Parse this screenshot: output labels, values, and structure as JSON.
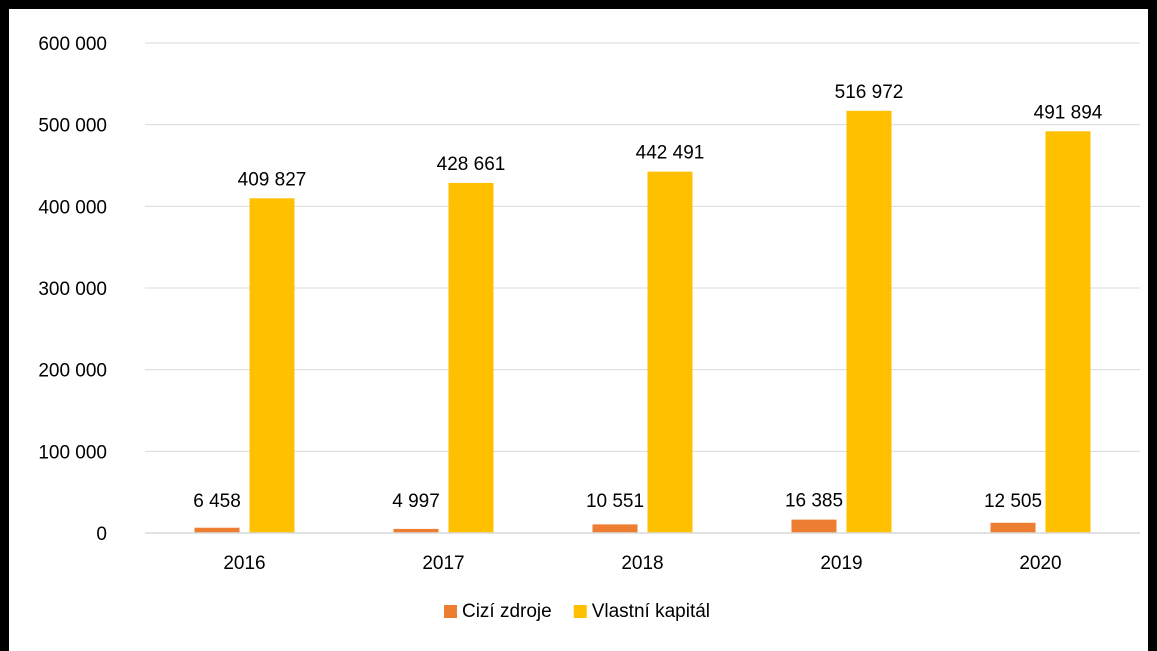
{
  "chart_data": {
    "type": "bar",
    "categories": [
      "2016",
      "2017",
      "2018",
      "2019",
      "2020"
    ],
    "series": [
      {
        "name": "Cizí zdroje",
        "color": "#ED7D31",
        "values": [
          6458,
          4997,
          10551,
          16385,
          12505
        ],
        "labels": [
          "6 458",
          "4 997",
          "10 551",
          "16 385",
          "12 505"
        ]
      },
      {
        "name": "Vlastní kapitál",
        "color": "#FFC000",
        "values": [
          409827,
          428661,
          442491,
          516972,
          491894
        ],
        "labels": [
          "409 827",
          "428 661",
          "442 491",
          "516 972",
          "491 894"
        ]
      }
    ],
    "ylim": [
      0,
      600000
    ],
    "y_ticks": [
      0,
      100000,
      200000,
      300000,
      400000,
      500000,
      600000
    ],
    "y_tick_labels": [
      "0",
      "100 000",
      "200 000",
      "300 000",
      "400 000",
      "500 000",
      "600 000"
    ],
    "grid": true,
    "legend_position": "bottom"
  }
}
